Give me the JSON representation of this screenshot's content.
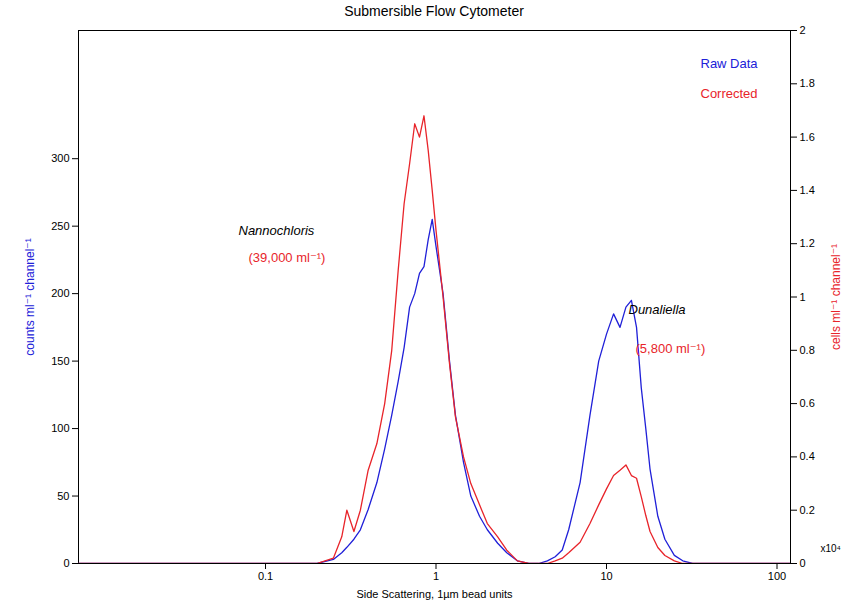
{
  "chart_data": {
    "type": "line",
    "title": "Submersible Flow Cytometer",
    "x_label": "Side Scattering, 1µm bead units",
    "y_label": "counts ml⁻¹ channel⁻¹",
    "y2_label": "cells ml⁻¹ channel⁻¹",
    "y2_multiplier": "x10⁴",
    "log": "x",
    "xlim": [
      0.008,
      120
    ],
    "xticks": [
      0.1,
      1,
      10,
      100
    ],
    "ylim": [
      0,
      395
    ],
    "yticks": [
      0,
      50,
      100,
      150,
      200,
      250,
      300
    ],
    "y2lim": [
      0,
      2
    ],
    "y2ticks": [
      0,
      0.2,
      0.4,
      0.6,
      0.8,
      1,
      1.2,
      1.4,
      1.6,
      1.8,
      2
    ],
    "legend": "upper right",
    "x": [
      0.008,
      0.2,
      0.25,
      0.28,
      0.3,
      0.33,
      0.36,
      0.4,
      0.45,
      0.5,
      0.55,
      0.6,
      0.65,
      0.7,
      0.75,
      0.8,
      0.85,
      0.9,
      0.95,
      1.0,
      1.1,
      1.2,
      1.3,
      1.45,
      1.6,
      1.8,
      2.0,
      2.3,
      2.6,
      3.0,
      3.5,
      4.0,
      4.5,
      5,
      5.5,
      6,
      7,
      8,
      9,
      10,
      11,
      12,
      13,
      14,
      15,
      16,
      17,
      18,
      20,
      22,
      25,
      28,
      32,
      120
    ],
    "series": [
      {
        "name": "Raw Data",
        "color": "#2020d8",
        "axis": "y",
        "values": [
          0,
          0,
          3,
          8,
          12,
          18,
          25,
          40,
          60,
          85,
          110,
          135,
          160,
          190,
          200,
          215,
          220,
          240,
          255,
          235,
          200,
          150,
          110,
          75,
          50,
          35,
          25,
          15,
          8,
          2,
          0,
          0,
          2,
          5,
          10,
          25,
          60,
          110,
          150,
          170,
          185,
          175,
          190,
          195,
          175,
          130,
          100,
          70,
          35,
          18,
          6,
          2,
          0,
          0
        ]
      },
      {
        "name": "Corrected",
        "color": "#e8242a",
        "axis": "y2",
        "values": [
          0,
          0,
          0.02,
          0.1,
          0.2,
          0.12,
          0.2,
          0.35,
          0.45,
          0.6,
          0.8,
          1.1,
          1.35,
          1.5,
          1.65,
          1.6,
          1.68,
          1.55,
          1.4,
          1.25,
          1.0,
          0.75,
          0.55,
          0.4,
          0.3,
          0.22,
          0.15,
          0.1,
          0.05,
          0.01,
          0,
          0,
          0,
          0.01,
          0.02,
          0.04,
          0.08,
          0.15,
          0.22,
          0.28,
          0.33,
          0.35,
          0.37,
          0.33,
          0.32,
          0.25,
          0.18,
          0.12,
          0.06,
          0.03,
          0.01,
          0,
          0,
          0
        ]
      }
    ],
    "annotations": [
      {
        "text": "Nannochloris",
        "color": "#000000"
      },
      {
        "text": "(39,000 ml⁻¹)",
        "color": "#e8242a"
      },
      {
        "text": "Dunaliella",
        "color": "#000000"
      },
      {
        "text": "(5,800 ml⁻¹)",
        "color": "#e8242a"
      }
    ]
  }
}
